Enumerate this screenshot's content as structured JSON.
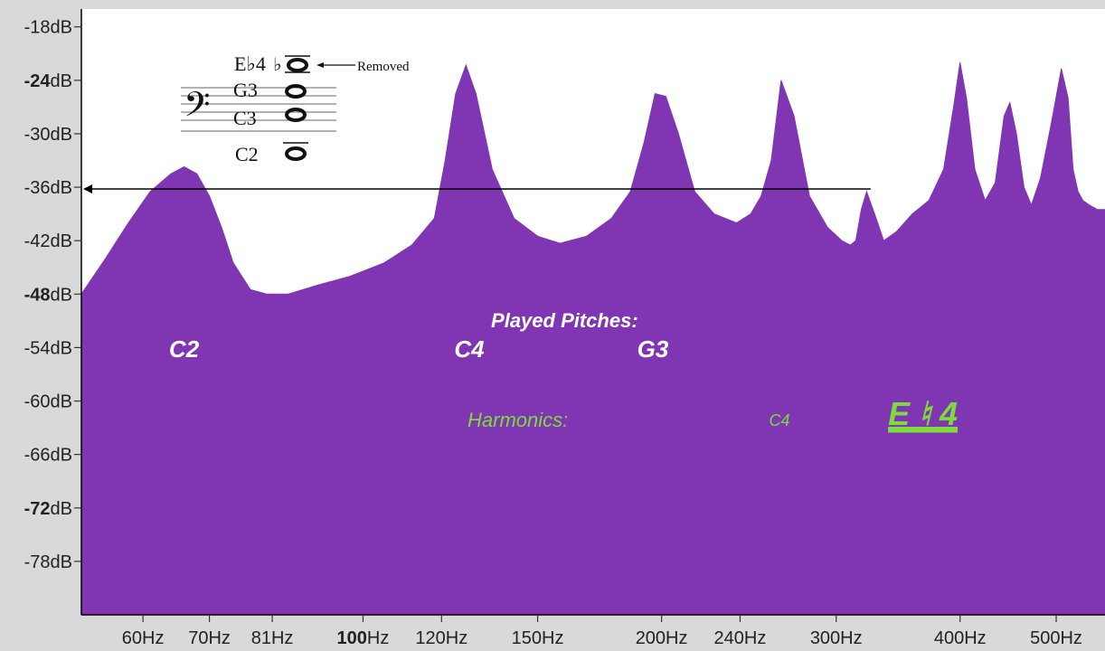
{
  "chart_data": {
    "type": "area",
    "title": "",
    "xlabel": "",
    "ylabel": "",
    "x_scale": "log",
    "xlim": [
      52,
      560
    ],
    "ylim": [
      -84,
      -16
    ],
    "grid": false,
    "fill_color": "#8036b3",
    "y_ticks": [
      {
        "value": -18,
        "label": "-18dB",
        "bold": false
      },
      {
        "value": -24,
        "label": "-24dB",
        "bold": true
      },
      {
        "value": -30,
        "label": "-30dB",
        "bold": false
      },
      {
        "value": -36,
        "label": "-36dB",
        "bold": false
      },
      {
        "value": -42,
        "label": "-42dB",
        "bold": false
      },
      {
        "value": -48,
        "label": "-48dB",
        "bold": true
      },
      {
        "value": -54,
        "label": "-54dB",
        "bold": false
      },
      {
        "value": -60,
        "label": "-60dB",
        "bold": false
      },
      {
        "value": -66,
        "label": "-66dB",
        "bold": false
      },
      {
        "value": -72,
        "label": "-72dB",
        "bold": true
      },
      {
        "value": -78,
        "label": "-78dB",
        "bold": false
      }
    ],
    "x_ticks": [
      {
        "value": 60,
        "label": "60Hz",
        "bold_prefix": ""
      },
      {
        "value": 70,
        "label": "70Hz",
        "bold_prefix": ""
      },
      {
        "value": 81,
        "label": "81Hz",
        "bold_prefix": ""
      },
      {
        "value": 100,
        "label": "Hz",
        "bold_prefix": "100"
      },
      {
        "value": 120,
        "label": "120Hz",
        "bold_prefix": ""
      },
      {
        "value": 150,
        "label": "150Hz",
        "bold_prefix": ""
      },
      {
        "value": 200,
        "label": "200Hz",
        "bold_prefix": ""
      },
      {
        "value": 240,
        "label": "240Hz",
        "bold_prefix": ""
      },
      {
        "value": 300,
        "label": "300Hz",
        "bold_prefix": ""
      },
      {
        "value": 400,
        "label": "400Hz",
        "bold_prefix": ""
      },
      {
        "value": 500,
        "label": "500Hz",
        "bold_prefix": ""
      }
    ],
    "series": [
      {
        "x": [
          52,
          55,
          58,
          61,
          64,
          66,
          68,
          70,
          72,
          74,
          77,
          80,
          84,
          90,
          97,
          105,
          112,
          118,
          121,
          124,
          127,
          130,
          135,
          142,
          150,
          158,
          168,
          178,
          186,
          192,
          197,
          202,
          208,
          216,
          226,
          238,
          246,
          252,
          258,
          264,
          272,
          282,
          294,
          304,
          310,
          314,
          318,
          322,
          328,
          335,
          345,
          358,
          372,
          385,
          394,
          400,
          406,
          414,
          424,
          434,
          443,
          449,
          456,
          464,
          472,
          482,
          494,
          506,
          514,
          520,
          526,
          532,
          540,
          550,
          560
        ],
        "y": [
          -48,
          -44,
          -40,
          -36.5,
          -34.5,
          -33.7,
          -34.5,
          -37,
          -40.5,
          -44.5,
          -47.5,
          -48,
          -48,
          -47,
          -46,
          -44.5,
          -42.5,
          -39.5,
          -33,
          -25.5,
          -22.3,
          -25.5,
          -34,
          -39.5,
          -41.5,
          -42.3,
          -41.5,
          -39.5,
          -36.5,
          -31,
          -25.5,
          -25.8,
          -30,
          -36.5,
          -39,
          -40,
          -39,
          -37,
          -33,
          -24,
          -28,
          -37,
          -40.5,
          -42,
          -42.5,
          -42,
          -38.5,
          -36.5,
          -39,
          -42,
          -41,
          -39,
          -37.5,
          -34,
          -27,
          -22,
          -26,
          -34,
          -37.5,
          -35.5,
          -28,
          -26.5,
          -30,
          -36,
          -38,
          -35,
          -29,
          -22.7,
          -26,
          -34,
          -36.5,
          -37.5,
          -38,
          -38.5,
          -38.5
        ]
      }
    ],
    "annotations": {
      "played_title": "Played Pitches:",
      "played_notes": [
        {
          "label": "C2",
          "x": 66
        },
        {
          "label": "C4",
          "x": 128
        },
        {
          "label": "G3",
          "x": 196
        }
      ],
      "harmonics_title": "Harmonics:",
      "harmonics_notes": [
        {
          "label": "C4",
          "x": 263
        },
        {
          "label": "E ♮ 4",
          "x": 330
        }
      ],
      "reference_line_db": -36.2,
      "reference_line_from_hz": 325
    },
    "legend_inset": {
      "notes": [
        "E♭4",
        "G3",
        "C3",
        "C2"
      ],
      "flat_symbol": "♭",
      "removed_label": "Removed"
    },
    "colors": {
      "annotation_white": "#ffffff",
      "annotation_green": "#7ddc3c",
      "axis_line": "#000000"
    }
  }
}
